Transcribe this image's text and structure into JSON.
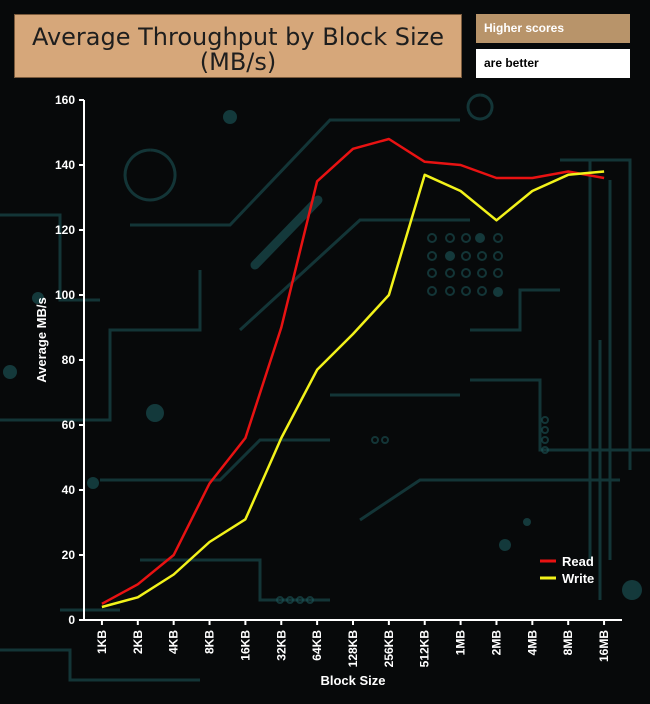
{
  "header": {
    "title_line1": "Average Throughput by Block Size",
    "title_line2": "(MB/s)",
    "note_line1": "Higher scores",
    "note_line2": "are better"
  },
  "colors": {
    "read": "#e81212",
    "write": "#f2f21a",
    "axis": "#ffffff",
    "circuit": "#1d5a5c",
    "title_bg": "#d6a77a"
  },
  "chart_data": {
    "type": "line",
    "title": "Average Throughput by Block Size (MB/s)",
    "xlabel": "Block Size",
    "ylabel": "Average MB/s",
    "categories": [
      "1KB",
      "2KB",
      "4KB",
      "8KB",
      "16KB",
      "32KB",
      "64KB",
      "128KB",
      "256KB",
      "512KB",
      "1MB",
      "2MB",
      "4MB",
      "8MB",
      "16MB"
    ],
    "ylim": [
      0,
      160
    ],
    "yticks": [
      0,
      20,
      40,
      60,
      80,
      100,
      120,
      140,
      160
    ],
    "grid": false,
    "legend_position": "bottom-right",
    "series": [
      {
        "name": "Read",
        "color": "#e81212",
        "values": [
          5,
          11,
          20,
          42,
          56,
          90,
          135,
          145,
          148,
          141,
          140,
          136,
          136,
          138,
          136
        ]
      },
      {
        "name": "Write",
        "color": "#f2f21a",
        "values": [
          4,
          7,
          14,
          24,
          31,
          56,
          77,
          88,
          100,
          137,
          132,
          123,
          132,
          137,
          138
        ]
      }
    ]
  }
}
